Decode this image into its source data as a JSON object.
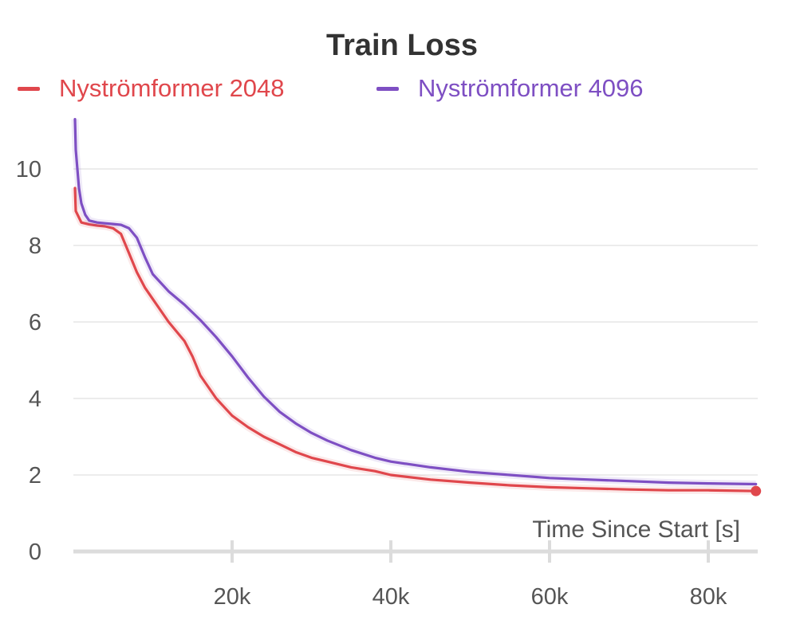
{
  "chart_data": {
    "type": "line",
    "title": "Train Loss",
    "xlabel": "Time Since Start [s]",
    "ylabel": "",
    "xlim": [
      0,
      86000
    ],
    "ylim": [
      0,
      11
    ],
    "x_ticks": [
      20000,
      40000,
      60000,
      80000
    ],
    "x_tick_labels": [
      "20k",
      "40k",
      "60k",
      "80k"
    ],
    "y_ticks": [
      0,
      2,
      4,
      6,
      8,
      10
    ],
    "y_tick_labels": [
      "0",
      "2",
      "4",
      "6",
      "8",
      "10"
    ],
    "grid": true,
    "legend_position": "top",
    "series": [
      {
        "name": "Nyströmformer 2048",
        "color": "#e0474c",
        "x": [
          200,
          300,
          1000,
          2000,
          3000,
          4000,
          5000,
          6000,
          7000,
          8000,
          9000,
          10000,
          12000,
          14000,
          15000,
          16000,
          18000,
          20000,
          22000,
          24000,
          26000,
          28000,
          30000,
          32000,
          35000,
          38000,
          40000,
          45000,
          50000,
          55000,
          60000,
          65000,
          70000,
          75000,
          80000,
          86000
        ],
        "y": [
          9.5,
          8.9,
          8.6,
          8.55,
          8.52,
          8.5,
          8.45,
          8.3,
          7.8,
          7.3,
          6.9,
          6.6,
          6.0,
          5.5,
          5.1,
          4.6,
          4.0,
          3.55,
          3.25,
          3.0,
          2.8,
          2.6,
          2.45,
          2.35,
          2.2,
          2.1,
          2.0,
          1.88,
          1.8,
          1.73,
          1.68,
          1.65,
          1.62,
          1.6,
          1.6,
          1.58
        ]
      },
      {
        "name": "Nyströmformer 4096",
        "color": "#7e4fc3",
        "x": [
          200,
          300,
          700,
          1000,
          1500,
          2000,
          3000,
          4000,
          5000,
          6000,
          7000,
          8000,
          9000,
          10000,
          12000,
          14000,
          16000,
          18000,
          20000,
          22000,
          24000,
          26000,
          28000,
          30000,
          32000,
          35000,
          38000,
          40000,
          45000,
          50000,
          55000,
          60000,
          65000,
          70000,
          75000,
          80000,
          86000
        ],
        "y": [
          11.3,
          10.5,
          9.5,
          9.1,
          8.8,
          8.65,
          8.6,
          8.58,
          8.56,
          8.54,
          8.45,
          8.2,
          7.7,
          7.25,
          6.8,
          6.45,
          6.05,
          5.6,
          5.1,
          4.55,
          4.05,
          3.65,
          3.35,
          3.1,
          2.9,
          2.65,
          2.45,
          2.35,
          2.2,
          2.08,
          2.0,
          1.92,
          1.88,
          1.84,
          1.8,
          1.78,
          1.76
        ]
      }
    ]
  }
}
